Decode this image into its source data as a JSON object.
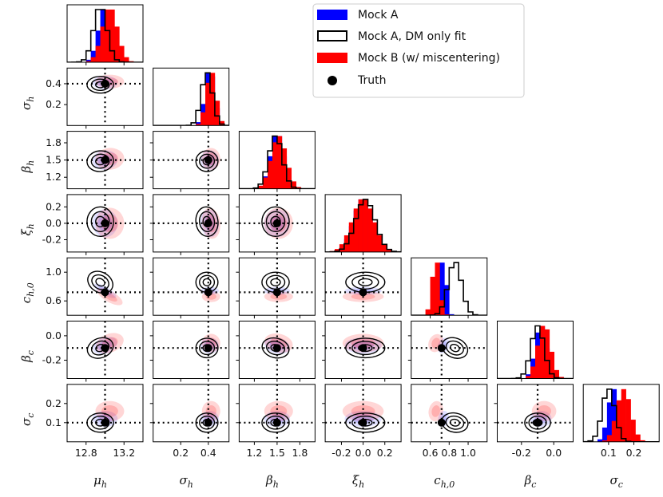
{
  "chart_data": {
    "type": "corner",
    "parameters": [
      {
        "key": "mu_h",
        "label": "μh",
        "sym": "μ",
        "sub": "h",
        "range": [
          12.6,
          13.4
        ],
        "truth": 13.0,
        "ticks": [
          12.8,
          13.2
        ],
        "tick_labels": [
          "12.8",
          "13.2"
        ]
      },
      {
        "key": "sigma_h",
        "label": "σh",
        "sym": "σ",
        "sub": "h",
        "range": [
          0.0,
          0.55
        ],
        "truth": 0.4,
        "ticks": [
          0.2,
          0.4
        ],
        "tick_labels": [
          "0.2",
          "0.4"
        ]
      },
      {
        "key": "beta_h",
        "label": "βh",
        "sym": "β",
        "sub": "h",
        "range": [
          1.0,
          2.0
        ],
        "truth": 1.5,
        "ticks": [
          1.2,
          1.5,
          1.8
        ],
        "tick_labels": [
          "1.2",
          "1.5",
          "1.8"
        ]
      },
      {
        "key": "xi_h",
        "label": "ξh",
        "sym": "ξ",
        "sub": "h",
        "range": [
          -0.35,
          0.35
        ],
        "truth": 0.0,
        "ticks": [
          -0.2,
          0.0,
          0.2
        ],
        "tick_labels": [
          "-0.2",
          "0.0",
          "0.2"
        ]
      },
      {
        "key": "c_h0",
        "label": "ch,0",
        "sym": "c",
        "sub": "h,0",
        "range": [
          0.4,
          1.2
        ],
        "truth": 0.72,
        "ticks": [
          0.6,
          0.8,
          1.0
        ],
        "tick_labels": [
          "0.6",
          "0.8",
          "1.0"
        ]
      },
      {
        "key": "beta_c",
        "label": "βc",
        "sym": "β",
        "sub": "c",
        "range": [
          -0.35,
          0.12
        ],
        "truth": -0.1,
        "ticks": [
          -0.2,
          0.0
        ],
        "tick_labels": [
          "-0.2",
          "0.0"
        ]
      },
      {
        "key": "sigma_c",
        "label": "σc",
        "sym": "σ",
        "sub": "c",
        "range": [
          0.0,
          0.3
        ],
        "truth": 0.1,
        "ticks": [
          0.1,
          0.2
        ],
        "tick_labels": [
          "0.1",
          "0.2"
        ]
      }
    ],
    "row_ticks": {
      "sigma_h": {
        "ticks": [
          0.2,
          0.4
        ],
        "labels": [
          "0.2",
          "0.4"
        ]
      },
      "beta_h": {
        "ticks": [
          1.2,
          1.5,
          1.8
        ],
        "labels": [
          "1.2",
          "1.5",
          "1.8"
        ]
      },
      "xi_h": {
        "ticks": [
          -0.2,
          0.0,
          0.2
        ],
        "labels": [
          "-0.2",
          "0.0",
          "0.2"
        ]
      },
      "c_h0": {
        "ticks": [
          0.6,
          1.0
        ],
        "labels": [
          "0.6",
          "1.0"
        ]
      },
      "beta_c": {
        "ticks": [
          -0.2,
          0.0
        ],
        "labels": [
          "-0.2",
          "0.0"
        ]
      },
      "sigma_c": {
        "ticks": [
          0.1,
          0.2
        ],
        "labels": [
          "0.1",
          "0.2"
        ]
      }
    },
    "series": [
      {
        "name": "Mock A",
        "color": "#0000ff",
        "style": "filled",
        "means": [
          13.0,
          0.41,
          1.5,
          0.0,
          0.74,
          -0.08,
          0.12
        ],
        "sds": [
          0.07,
          0.035,
          0.09,
          0.09,
          0.03,
          0.035,
          0.022
        ]
      },
      {
        "name": "Mock A, DM only fit",
        "color": "#000000",
        "style": "step",
        "means": [
          12.95,
          0.39,
          1.48,
          0.02,
          0.86,
          -0.1,
          0.1
        ],
        "sds": [
          0.07,
          0.04,
          0.09,
          0.09,
          0.07,
          0.04,
          0.025
        ]
      },
      {
        "name": "Mock B (w/ miscentering)",
        "color": "#ff0000",
        "style": "filled",
        "means": [
          13.05,
          0.42,
          1.52,
          0.0,
          0.66,
          -0.06,
          0.16
        ],
        "sds": [
          0.08,
          0.035,
          0.1,
          0.1,
          0.04,
          0.04,
          0.028
        ]
      }
    ],
    "truth": {
      "label": "Truth",
      "marker": "filled circle",
      "color": "#000000",
      "values": [
        13.0,
        0.4,
        1.5,
        0.0,
        0.72,
        -0.1,
        0.1
      ]
    },
    "legend": {
      "placement": "top-right"
    }
  },
  "colors": {
    "mock_a": "#0000ff",
    "dm_only": "#000000",
    "mock_b": "#ff0000",
    "truth": "#000000"
  }
}
